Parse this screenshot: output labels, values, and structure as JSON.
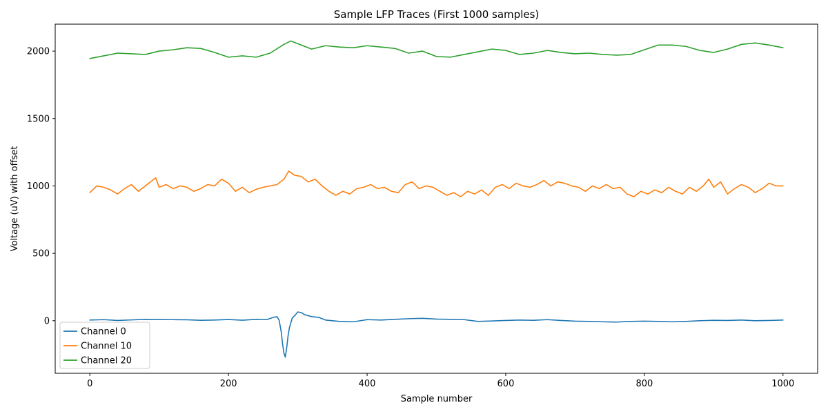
{
  "chart_data": {
    "type": "line",
    "title": "Sample LFP Traces (First 1000 samples)",
    "xlabel": "Sample number",
    "ylabel": "Voltage (uV) with offset",
    "xlim": [
      -50,
      1050
    ],
    "ylim": [
      -390,
      2200
    ],
    "xticks": [
      0,
      200,
      400,
      600,
      800,
      1000
    ],
    "xtick_labels": [
      "0",
      "200",
      "400",
      "600",
      "800",
      "1000"
    ],
    "yticks": [
      0,
      500,
      1000,
      1500,
      2000
    ],
    "ytick_labels": [
      "0",
      "500",
      "1000",
      "1500",
      "2000"
    ],
    "grid": false,
    "legend_position": "lower-left",
    "series": [
      {
        "name": "Channel 0",
        "color": "#1f77b4",
        "x": [
          0,
          20,
          40,
          60,
          80,
          100,
          120,
          140,
          160,
          180,
          200,
          220,
          240,
          255,
          265,
          270,
          273,
          276,
          278,
          280,
          282,
          284,
          286,
          288,
          292,
          296,
          300,
          305,
          310,
          320,
          330,
          340,
          360,
          380,
          400,
          420,
          440,
          460,
          480,
          500,
          520,
          540,
          560,
          580,
          600,
          620,
          640,
          660,
          680,
          700,
          720,
          740,
          760,
          780,
          800,
          820,
          840,
          860,
          880,
          900,
          920,
          940,
          960,
          980,
          1000
        ],
        "values": [
          5,
          8,
          2,
          6,
          10,
          9,
          8,
          7,
          3,
          5,
          9,
          4,
          10,
          8,
          25,
          30,
          5,
          -80,
          -170,
          -240,
          -270,
          -200,
          -110,
          -50,
          20,
          40,
          65,
          60,
          45,
          30,
          25,
          5,
          -5,
          -8,
          8,
          5,
          10,
          15,
          18,
          12,
          10,
          8,
          -5,
          -2,
          2,
          5,
          3,
          8,
          2,
          -3,
          -5,
          -8,
          -10,
          -5,
          -3,
          -5,
          -8,
          -5,
          0,
          3,
          2,
          5,
          0,
          2,
          5
        ]
      },
      {
        "name": "Channel 10",
        "color": "#ff7f0e",
        "x": [
          0,
          10,
          20,
          30,
          40,
          50,
          60,
          70,
          80,
          90,
          95,
          100,
          110,
          120,
          130,
          140,
          150,
          160,
          170,
          180,
          190,
          200,
          210,
          220,
          230,
          240,
          250,
          260,
          270,
          280,
          287,
          295,
          305,
          315,
          325,
          335,
          345,
          355,
          365,
          375,
          385,
          395,
          405,
          415,
          425,
          435,
          445,
          455,
          465,
          475,
          485,
          495,
          505,
          515,
          525,
          535,
          545,
          555,
          565,
          575,
          585,
          595,
          605,
          615,
          625,
          635,
          645,
          655,
          665,
          675,
          685,
          695,
          705,
          715,
          725,
          735,
          745,
          755,
          765,
          775,
          785,
          795,
          805,
          815,
          825,
          835,
          845,
          855,
          865,
          875,
          885,
          893,
          900,
          910,
          920,
          930,
          940,
          950,
          960,
          970,
          980,
          990,
          1000
        ],
        "values": [
          950,
          1000,
          990,
          970,
          940,
          980,
          1010,
          960,
          1000,
          1040,
          1060,
          990,
          1010,
          980,
          1000,
          990,
          960,
          980,
          1010,
          1000,
          1050,
          1020,
          960,
          990,
          950,
          975,
          990,
          1000,
          1010,
          1050,
          1110,
          1080,
          1070,
          1030,
          1050,
          1000,
          960,
          930,
          960,
          940,
          980,
          990,
          1010,
          980,
          990,
          960,
          950,
          1010,
          1030,
          980,
          1000,
          990,
          960,
          930,
          950,
          920,
          960,
          940,
          970,
          930,
          990,
          1010,
          980,
          1020,
          1000,
          990,
          1010,
          1040,
          1000,
          1030,
          1020,
          1000,
          990,
          960,
          1000,
          980,
          1010,
          980,
          990,
          940,
          920,
          960,
          940,
          970,
          950,
          990,
          960,
          940,
          990,
          960,
          1000,
          1050,
          990,
          1030,
          940,
          980,
          1010,
          990,
          950,
          980,
          1020,
          1000,
          1000
        ]
      },
      {
        "name": "Channel 20",
        "color": "#2ca02c",
        "x": [
          0,
          20,
          40,
          60,
          80,
          100,
          120,
          140,
          160,
          180,
          200,
          220,
          240,
          260,
          280,
          290,
          300,
          320,
          340,
          360,
          380,
          400,
          420,
          440,
          460,
          480,
          500,
          520,
          540,
          560,
          580,
          600,
          620,
          640,
          660,
          680,
          700,
          720,
          740,
          760,
          780,
          800,
          820,
          840,
          860,
          880,
          900,
          920,
          940,
          960,
          980,
          1000
        ],
        "values": [
          1945,
          1965,
          1985,
          1980,
          1975,
          2000,
          2010,
          2025,
          2020,
          1990,
          1955,
          1965,
          1955,
          1985,
          2050,
          2075,
          2055,
          2015,
          2040,
          2030,
          2025,
          2040,
          2030,
          2020,
          1985,
          2000,
          1960,
          1955,
          1975,
          1995,
          2015,
          2005,
          1975,
          1985,
          2005,
          1990,
          1980,
          1985,
          1975,
          1970,
          1975,
          2010,
          2045,
          2045,
          2035,
          2005,
          1990,
          2015,
          2050,
          2060,
          2045,
          2025
        ]
      }
    ]
  }
}
